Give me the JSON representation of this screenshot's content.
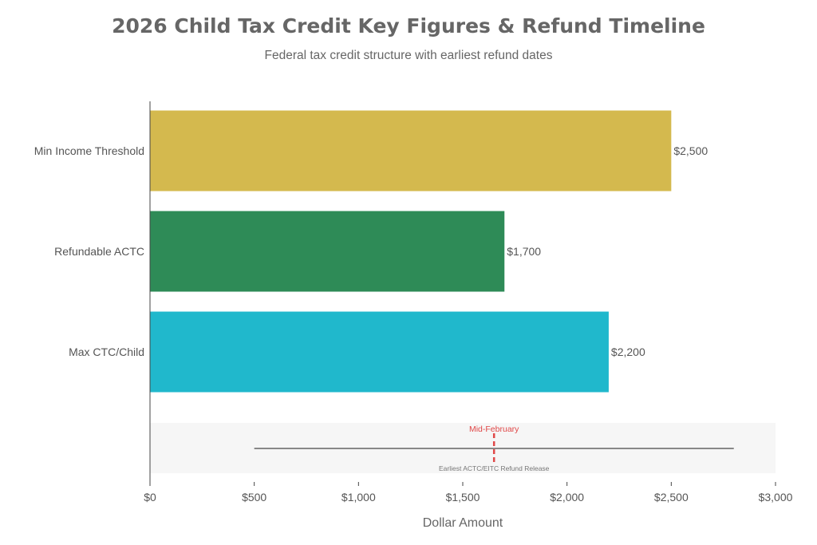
{
  "title": "2026 Child Tax Credit Key Figures & Refund Timeline",
  "subtitle": "Federal tax credit structure with earliest refund dates",
  "chart_data": {
    "type": "bar",
    "orientation": "horizontal",
    "categories": [
      "Min Income Threshold",
      "Refundable ACTC",
      "Max CTC/Child"
    ],
    "values": [
      2500,
      1700,
      2200
    ],
    "value_labels": [
      "$2,500",
      "$1,700",
      "$2,200"
    ],
    "colors": [
      "#d4b94e",
      "#2e8b57",
      "#20b8cc"
    ],
    "xlabel": "Dollar Amount",
    "ylabel": "",
    "xlim": [
      0,
      3000
    ],
    "x_ticks": [
      0,
      500,
      1000,
      1500,
      2000,
      2500,
      3000
    ],
    "x_tick_labels": [
      "$0",
      "$500",
      "$1,000",
      "$1,500",
      "$2,000",
      "$2,500",
      "$3,000"
    ],
    "grid": false,
    "timeline": {
      "marker_label": "Mid-February",
      "caption": "Earliest ACTC/EITC Refund Release",
      "line_start": 500,
      "line_end": 2800,
      "marker_at": 1650,
      "line_color": "#888888",
      "marker_color": "#e04848"
    }
  }
}
